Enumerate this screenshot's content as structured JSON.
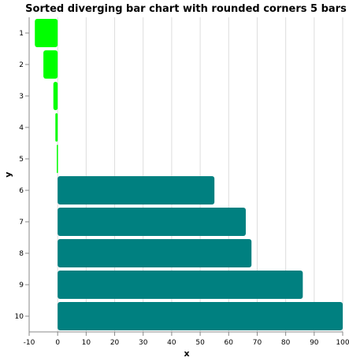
{
  "chart_data": {
    "type": "bar",
    "orientation": "horizontal",
    "title": "Sorted diverging bar chart with rounded corners 5 bars",
    "xlabel": "x",
    "ylabel": "y",
    "xlim": [
      -10,
      100
    ],
    "x_ticks": [
      -10,
      0,
      10,
      20,
      30,
      40,
      50,
      60,
      70,
      80,
      90,
      100
    ],
    "categories": [
      "1",
      "2",
      "3",
      "4",
      "5",
      "6",
      "7",
      "8",
      "9",
      "10"
    ],
    "values": [
      -8,
      -5,
      -1.5,
      -0.8,
      -0.3,
      55,
      66,
      68,
      86,
      100
    ],
    "grid": true,
    "colors": {
      "negative": "#00ff00",
      "positive": "#008080",
      "grid": "#dddddd",
      "axis": "#888888"
    }
  }
}
